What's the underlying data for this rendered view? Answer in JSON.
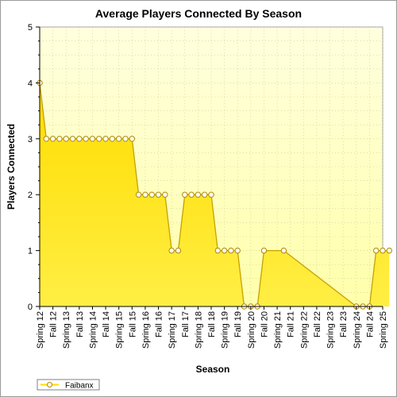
{
  "chart_data": {
    "type": "area",
    "title": "Average Players Connected By Season",
    "xlabel": "Season",
    "ylabel": "Players Connected",
    "ylim": [
      0,
      5
    ],
    "yticks": [
      "0",
      "1",
      "2",
      "3",
      "4",
      "5"
    ],
    "grid": true,
    "legend_position": "bottom-left",
    "colors": {
      "plot_bg_top": "#ffffde",
      "plot_bg_bottom": "#ffffaa",
      "fill_top": "#ffdd00",
      "fill_bottom": "#ffee44",
      "line": "#c8a000",
      "marker_fill": "#ffffff",
      "marker_stroke": "#b08800"
    },
    "category_labels": [
      "Spring 12",
      "Fall 12",
      "Spring 13",
      "Fall 13",
      "Spring 14",
      "Fall 14",
      "Spring 15",
      "Fall 15",
      "Spring 16",
      "Fall 16",
      "Spring 17",
      "Fall 17",
      "Spring 18",
      "Fall 18",
      "Spring 19",
      "Fall 19",
      "Spring 20",
      "Fall 20",
      "Spring 21",
      "Fall 21",
      "Spring 22",
      "Fall 22",
      "Spring 23",
      "Fall 23",
      "Spring 24",
      "Fall 24",
      "Spring 25"
    ],
    "series": [
      {
        "name": "Faibanx",
        "x": [
          0,
          0.5,
          1,
          1.5,
          2,
          2.5,
          3,
          3.5,
          4,
          4.5,
          5,
          5.5,
          6,
          6.5,
          7,
          7.5,
          8,
          8.5,
          9,
          9.5,
          10,
          10.5,
          11,
          11.5,
          12,
          12.5,
          13,
          13.5,
          14,
          14.5,
          15,
          15.5,
          16,
          16.5,
          17,
          18.5,
          24,
          24.5,
          25,
          25.5,
          26,
          26.5
        ],
        "values": [
          4,
          3,
          3,
          3,
          3,
          3,
          3,
          3,
          3,
          3,
          3,
          3,
          3,
          3,
          3,
          2,
          2,
          2,
          2,
          2,
          1,
          1,
          2,
          2,
          2,
          2,
          2,
          1,
          1,
          1,
          1,
          0,
          0,
          0,
          1,
          1,
          0,
          0,
          0,
          1,
          1,
          1
        ]
      }
    ]
  }
}
